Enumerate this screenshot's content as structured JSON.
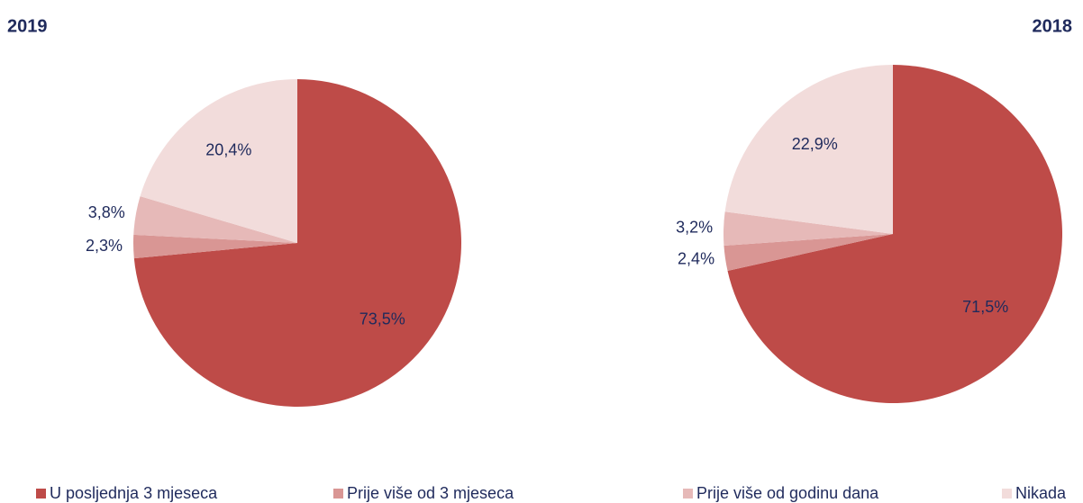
{
  "chart_data": [
    {
      "type": "pie",
      "title": "2019",
      "values": [
        73.5,
        2.3,
        3.8,
        20.4
      ],
      "value_labels": [
        "73,5%",
        "2,3%",
        "3,8%",
        "20,4%"
      ]
    },
    {
      "type": "pie",
      "title": "2018",
      "values": [
        71.5,
        2.4,
        3.2,
        22.9
      ],
      "value_labels": [
        "71,5%",
        "2,4%",
        "3,2%",
        "22,9%"
      ]
    }
  ],
  "legend": {
    "categories": [
      "U posljednja 3 mjeseca",
      "Prije više od 3 mjeseca",
      "Prije više od godinu dana",
      "Nikada"
    ],
    "colors": [
      "#be4b48",
      "#d99694",
      "#e6b9b8",
      "#f2dcdb"
    ]
  }
}
